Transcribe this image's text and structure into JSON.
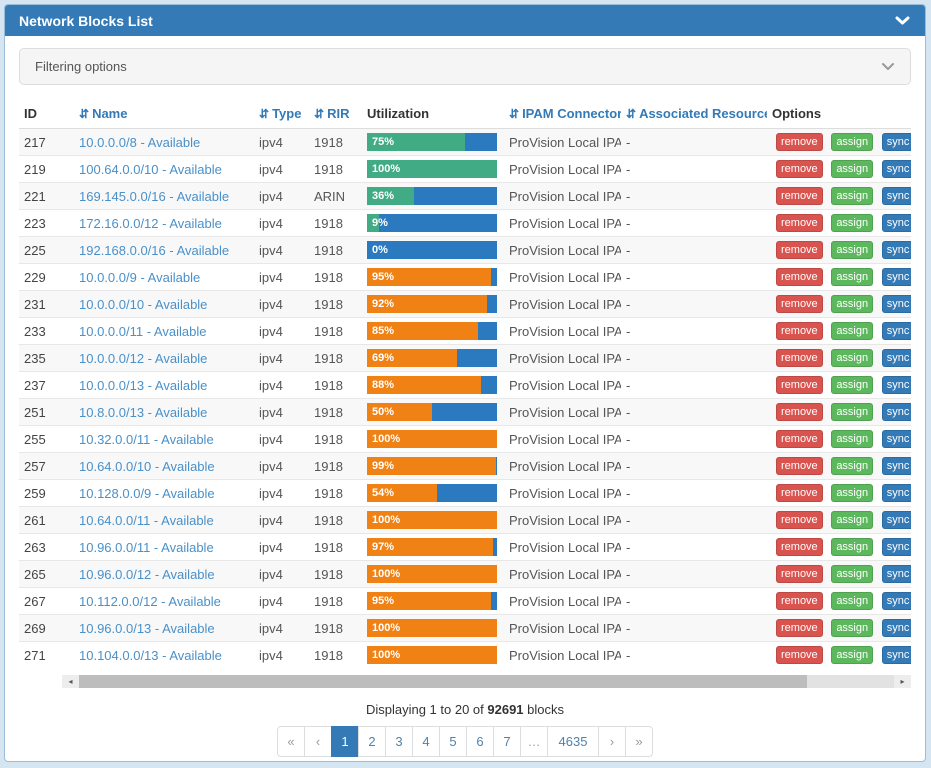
{
  "panel": {
    "title": "Network Blocks List"
  },
  "filter": {
    "label": "Filtering options"
  },
  "icons": {
    "sort_glyph": "⇵",
    "scroll_left_glyph": "◂",
    "scroll_right_glyph": "▸"
  },
  "table": {
    "headers": [
      {
        "label": "ID",
        "sortable": false
      },
      {
        "label": "Name",
        "sortable": true
      },
      {
        "label": "Type",
        "sortable": true
      },
      {
        "label": "RIR",
        "sortable": true
      },
      {
        "label": "Utilization",
        "sortable": false
      },
      {
        "label": "IPAM Connector",
        "sortable": true
      },
      {
        "label": "Associated Resources",
        "sortable": true
      },
      {
        "label": "Options",
        "sortable": false
      }
    ],
    "action_labels": {
      "remove": "remove",
      "assign": "assign",
      "sync": "sync"
    },
    "rows": [
      {
        "id": "217",
        "name": "10.0.0.0/8 - Available",
        "type": "ipv4",
        "rir": "1918",
        "util": 75,
        "util_label": "75%",
        "bar": "green",
        "connector": "ProVision Local IPAM",
        "resources": "-"
      },
      {
        "id": "219",
        "name": "100.64.0.0/10 - Available",
        "type": "ipv4",
        "rir": "1918",
        "util": 100,
        "util_label": "100%",
        "bar": "green",
        "connector": "ProVision Local IPAM",
        "resources": "-"
      },
      {
        "id": "221",
        "name": "169.145.0.0/16 - Available",
        "type": "ipv4",
        "rir": "ARIN",
        "util": 36,
        "util_label": "36%",
        "bar": "green",
        "connector": "ProVision Local IPAM",
        "resources": "-"
      },
      {
        "id": "223",
        "name": "172.16.0.0/12 - Available",
        "type": "ipv4",
        "rir": "1918",
        "util": 9,
        "util_label": "9%",
        "bar": "green",
        "connector": "ProVision Local IPAM",
        "resources": "-"
      },
      {
        "id": "225",
        "name": "192.168.0.0/16 - Available",
        "type": "ipv4",
        "rir": "1918",
        "util": 0,
        "util_label": "0%",
        "bar": "green",
        "connector": "ProVision Local IPAM",
        "resources": "-"
      },
      {
        "id": "229",
        "name": "10.0.0.0/9 - Available",
        "type": "ipv4",
        "rir": "1918",
        "util": 95,
        "util_label": "95%",
        "bar": "orange",
        "connector": "ProVision Local IPAM",
        "resources": "-"
      },
      {
        "id": "231",
        "name": "10.0.0.0/10 - Available",
        "type": "ipv4",
        "rir": "1918",
        "util": 92,
        "util_label": "92%",
        "bar": "orange",
        "connector": "ProVision Local IPAM",
        "resources": "-"
      },
      {
        "id": "233",
        "name": "10.0.0.0/11 - Available",
        "type": "ipv4",
        "rir": "1918",
        "util": 85,
        "util_label": "85%",
        "bar": "orange",
        "connector": "ProVision Local IPAM",
        "resources": "-"
      },
      {
        "id": "235",
        "name": "10.0.0.0/12 - Available",
        "type": "ipv4",
        "rir": "1918",
        "util": 69,
        "util_label": "69%",
        "bar": "orange",
        "connector": "ProVision Local IPAM",
        "resources": "-"
      },
      {
        "id": "237",
        "name": "10.0.0.0/13 - Available",
        "type": "ipv4",
        "rir": "1918",
        "util": 88,
        "util_label": "88%",
        "bar": "orange",
        "connector": "ProVision Local IPAM",
        "resources": "-"
      },
      {
        "id": "251",
        "name": "10.8.0.0/13 - Available",
        "type": "ipv4",
        "rir": "1918",
        "util": 50,
        "util_label": "50%",
        "bar": "orange",
        "connector": "ProVision Local IPAM",
        "resources": "-"
      },
      {
        "id": "255",
        "name": "10.32.0.0/11 - Available",
        "type": "ipv4",
        "rir": "1918",
        "util": 100,
        "util_label": "100%",
        "bar": "orange",
        "connector": "ProVision Local IPAM",
        "resources": "-"
      },
      {
        "id": "257",
        "name": "10.64.0.0/10 - Available",
        "type": "ipv4",
        "rir": "1918",
        "util": 99,
        "util_label": "99%",
        "bar": "orange",
        "connector": "ProVision Local IPAM",
        "resources": "-"
      },
      {
        "id": "259",
        "name": "10.128.0.0/9 - Available",
        "type": "ipv4",
        "rir": "1918",
        "util": 54,
        "util_label": "54%",
        "bar": "orange",
        "connector": "ProVision Local IPAM",
        "resources": "-"
      },
      {
        "id": "261",
        "name": "10.64.0.0/11 - Available",
        "type": "ipv4",
        "rir": "1918",
        "util": 100,
        "util_label": "100%",
        "bar": "orange",
        "connector": "ProVision Local IPAM",
        "resources": "-"
      },
      {
        "id": "263",
        "name": "10.96.0.0/11 - Available",
        "type": "ipv4",
        "rir": "1918",
        "util": 97,
        "util_label": "97%",
        "bar": "orange",
        "connector": "ProVision Local IPAM",
        "resources": "-"
      },
      {
        "id": "265",
        "name": "10.96.0.0/12 - Available",
        "type": "ipv4",
        "rir": "1918",
        "util": 100,
        "util_label": "100%",
        "bar": "orange",
        "connector": "ProVision Local IPAM",
        "resources": "-"
      },
      {
        "id": "267",
        "name": "10.112.0.0/12 - Available",
        "type": "ipv4",
        "rir": "1918",
        "util": 95,
        "util_label": "95%",
        "bar": "orange",
        "connector": "ProVision Local IPAM",
        "resources": "-"
      },
      {
        "id": "269",
        "name": "10.96.0.0/13 - Available",
        "type": "ipv4",
        "rir": "1918",
        "util": 100,
        "util_label": "100%",
        "bar": "orange",
        "connector": "ProVision Local IPAM",
        "resources": "-"
      },
      {
        "id": "271",
        "name": "10.104.0.0/13 - Available",
        "type": "ipv4",
        "rir": "1918",
        "util": 100,
        "util_label": "100%",
        "bar": "orange",
        "connector": "ProVision Local IPAM",
        "resources": "-"
      }
    ]
  },
  "summary": {
    "prefix": "Displaying 1 to 20 of",
    "count": "92691",
    "suffix": "blocks"
  },
  "pagination": {
    "items": [
      {
        "label": "«",
        "cls": "page-btn muted first"
      },
      {
        "label": "‹",
        "cls": "page-btn muted"
      },
      {
        "label": "1",
        "cls": "page-btn active"
      },
      {
        "label": "2",
        "cls": "page-btn"
      },
      {
        "label": "3",
        "cls": "page-btn"
      },
      {
        "label": "4",
        "cls": "page-btn"
      },
      {
        "label": "5",
        "cls": "page-btn"
      },
      {
        "label": "6",
        "cls": "page-btn"
      },
      {
        "label": "7",
        "cls": "page-btn"
      },
      {
        "label": "…",
        "cls": "page-btn muted"
      },
      {
        "label": "4635",
        "cls": "page-btn wide"
      },
      {
        "label": "›",
        "cls": "page-btn muted"
      },
      {
        "label": "»",
        "cls": "page-btn muted last"
      }
    ]
  },
  "colors": {
    "page_bg": "#d5e6f2",
    "heading_bg": "#337ab7",
    "sortable_header": "#337ab7",
    "link": "#4a90c9",
    "bar_green": "#41ab85",
    "bar_orange": "#f08114",
    "bar_bg": "#2b7abf",
    "remove_btn": "#d9534f",
    "assign_btn": "#5cb85c",
    "sync_btn": "#337ab7",
    "active_page_bg": "#337ab7"
  }
}
